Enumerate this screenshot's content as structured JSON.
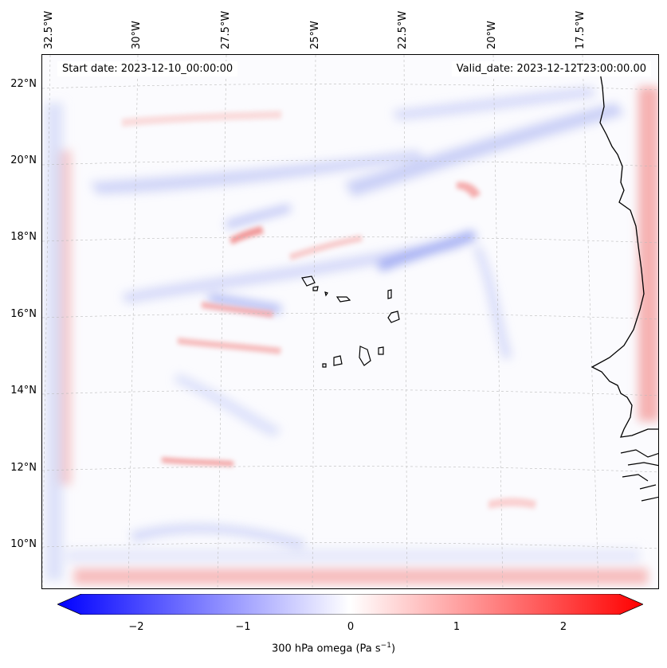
{
  "header": {
    "start_date": "Start date: 2023-12-10_00:00:00",
    "valid_date": "Valid_date: 2023-12-12T23:00:00.00"
  },
  "axes": {
    "longitude_labels": [
      "32.5°W",
      "30°W",
      "27.5°W",
      "25°W",
      "22.5°W",
      "20°W",
      "17.5°W"
    ],
    "latitude_labels": [
      "22°N",
      "20°N",
      "18°N",
      "16°N",
      "14°N",
      "12°N",
      "10°N"
    ]
  },
  "colorbar": {
    "ticks": [
      "−2",
      "−1",
      "0",
      "1",
      "2"
    ],
    "label_prefix": "300 hPa omega (Pa s",
    "label_sup": "−1",
    "label_suffix": ")",
    "range": [
      -2.7,
      2.7
    ],
    "extend": "both",
    "colormap": "bwr",
    "color_min": "#0000ff",
    "color_mid": "#ffffff",
    "color_max": "#ff0000"
  },
  "map": {
    "field": "300 hPa omega",
    "features": [
      "coastline-west-africa",
      "cape-verde-islands"
    ],
    "grid": true
  }
}
